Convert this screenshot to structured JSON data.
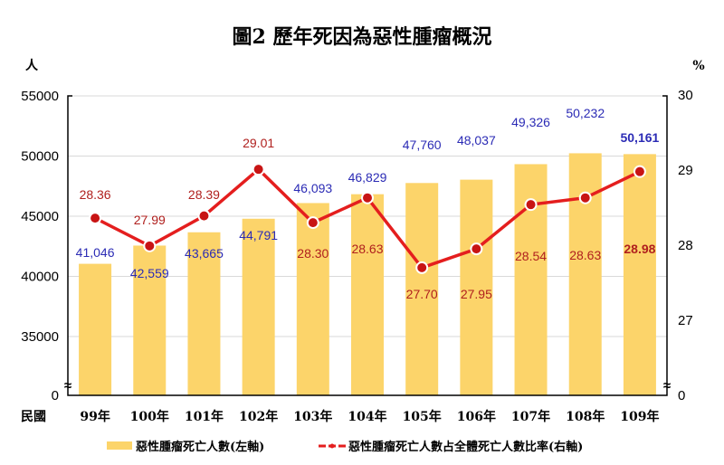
{
  "chart_data": {
    "type": "bar+line",
    "title": "圖2 歷年死因為惡性腫瘤概況",
    "ylabel_left": "人",
    "ylabel_right": "%",
    "xlabel": "民國",
    "categories": [
      "99年",
      "100年",
      "101年",
      "102年",
      "103年",
      "104年",
      "105年",
      "106年",
      "107年",
      "108年",
      "109年"
    ],
    "left_ticks": [
      "0",
      "35000",
      "40000",
      "45000",
      "50000",
      "55000"
    ],
    "right_ticks": [
      "0",
      "27",
      "28",
      "29",
      "30"
    ],
    "ylim_left": [
      0,
      55000
    ],
    "ylim_right": [
      0,
      30
    ],
    "axis_break": true,
    "series": [
      {
        "name": "惡性腫瘤死亡人數(左軸)",
        "type": "bar",
        "axis": "left",
        "color": "#fcd46a",
        "values": [
          41046,
          42559,
          43665,
          44791,
          46093,
          46829,
          47760,
          48037,
          49326,
          50232,
          50161
        ],
        "labels": [
          "41,046",
          "42,559",
          "43,665",
          "44,791",
          "46,093",
          "46,829",
          "47,760",
          "48,037",
          "49,326",
          "50,232",
          "50,161"
        ]
      },
      {
        "name": "惡性腫瘤死亡人數占全體死亡人數比率(右軸)",
        "type": "line",
        "axis": "right",
        "color": "#e41e1e",
        "values": [
          28.36,
          27.99,
          28.39,
          29.01,
          28.3,
          28.63,
          27.7,
          27.95,
          28.54,
          28.63,
          28.98
        ],
        "labels": [
          "28.36",
          "27.99",
          "28.39",
          "29.01",
          "28.30",
          "28.63",
          "27.70",
          "27.95",
          "28.54",
          "28.63",
          "28.98"
        ]
      }
    ],
    "legend_position": "bottom"
  }
}
